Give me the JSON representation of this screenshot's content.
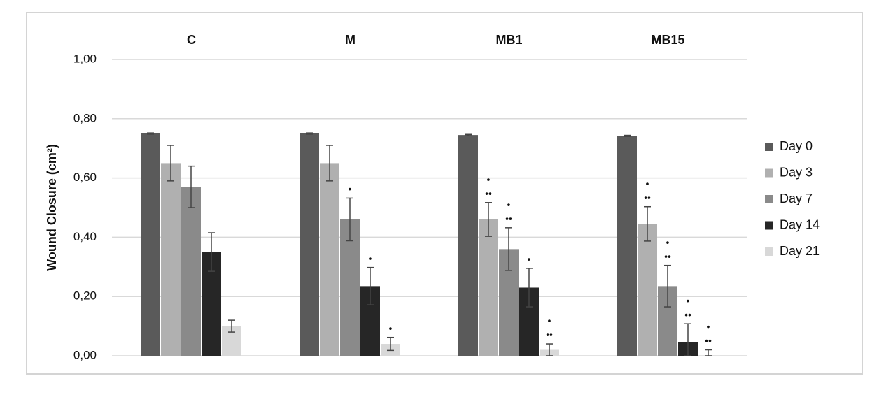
{
  "chart_data": {
    "type": "bar",
    "y_label": "Wound Closure (cm²)",
    "categories": [
      "C",
      "M",
      "MB1",
      "MB15"
    ],
    "series": [
      {
        "name": "Day 0",
        "color": "#5a5a5a",
        "values": [
          0.75,
          0.75,
          0.745,
          0.742
        ],
        "errors": [
          0.002,
          0.002,
          0.002,
          0.002
        ],
        "annotations": [
          null,
          null,
          null,
          null
        ]
      },
      {
        "name": "Day 3",
        "color": "#b0b0b0",
        "values": [
          0.65,
          0.65,
          0.46,
          0.445
        ],
        "errors": [
          0.06,
          0.06,
          0.057,
          0.058
        ],
        "annotations": [
          null,
          null,
          [
            "•",
            "••"
          ],
          [
            "•",
            "••"
          ]
        ]
      },
      {
        "name": "Day 7",
        "color": "#8a8a8a",
        "values": [
          0.57,
          0.46,
          0.36,
          0.235
        ],
        "errors": [
          0.07,
          0.072,
          0.072,
          0.07
        ],
        "annotations": [
          null,
          [
            "•"
          ],
          [
            "•",
            "••"
          ],
          [
            "•",
            "••"
          ]
        ]
      },
      {
        "name": "Day 14",
        "color": "#262626",
        "values": [
          0.35,
          0.235,
          0.23,
          0.045
        ],
        "errors": [
          0.065,
          0.063,
          0.065,
          0.063
        ],
        "annotations": [
          null,
          [
            "•"
          ],
          [
            "•"
          ],
          [
            "•",
            "••"
          ]
        ]
      },
      {
        "name": "Day 21",
        "color": "#d8d8d8",
        "values": [
          0.1,
          0.04,
          0.02,
          0.0
        ],
        "errors": [
          0.02,
          0.022,
          0.02,
          0.02
        ],
        "annotations": [
          null,
          [
            "•"
          ],
          [
            "•",
            "••"
          ],
          [
            "•",
            "••"
          ]
        ]
      }
    ],
    "ylim": [
      0,
      1
    ],
    "yticks": [
      {
        "value": 0,
        "label": "0,00"
      },
      {
        "value": 0.2,
        "label": "0,20"
      },
      {
        "value": 0.4,
        "label": "0,40"
      },
      {
        "value": 0.6,
        "label": "0,60"
      },
      {
        "value": 0.8,
        "label": "0,80"
      },
      {
        "value": 1,
        "label": "1,00"
      }
    ],
    "grid": true,
    "legend": "right"
  }
}
